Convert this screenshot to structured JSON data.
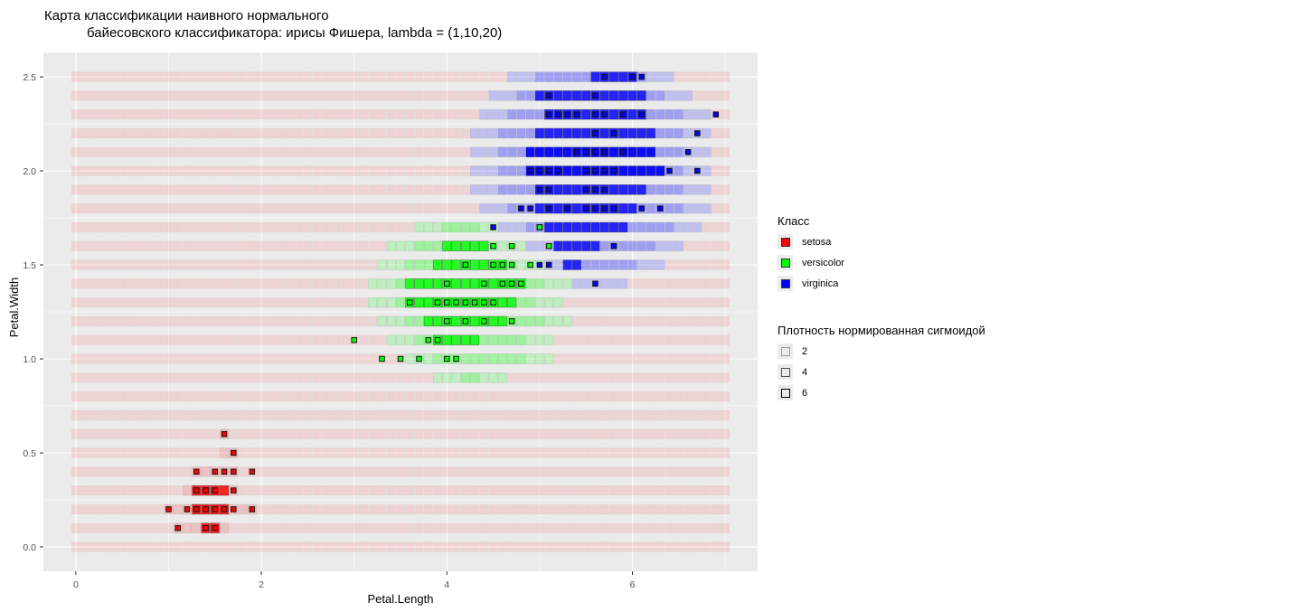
{
  "chart_data": {
    "type": "heatmap",
    "title_line1": "Карта классификации наивного нормального",
    "title_line2": "байесовского классификатора: ирисы Фишера, lambda = (1,10,20)",
    "xlabel": "Petal.Length",
    "ylabel": "Petal.Width",
    "xlim": [
      -0.35,
      7.35
    ],
    "ylim": [
      -0.13,
      2.63
    ],
    "x_ticks": [
      "0",
      "2",
      "4",
      "6"
    ],
    "y_ticks": [
      "0.0",
      "0.5",
      "1.0",
      "1.5",
      "2.0",
      "2.5"
    ],
    "grid": {
      "x_min": 0,
      "x_max": 7,
      "x_step": 0.1,
      "y_min": 0,
      "y_max": 2.5,
      "y_step": 0.1
    },
    "class_colors": {
      "setosa": "#ff0000",
      "versicolor": "#00ff00",
      "virginica": "#0000ff"
    },
    "regions": [
      {
        "class": "virginica",
        "y": 2.5,
        "x_from": 4.7,
        "x_to": 6.4,
        "core_from": 5.6,
        "core_to": 6.0
      },
      {
        "class": "virginica",
        "y": 2.4,
        "x_from": 4.5,
        "x_to": 6.6,
        "core_from": 5.0,
        "core_to": 6.1
      },
      {
        "class": "virginica",
        "y": 2.3,
        "x_from": 4.4,
        "x_to": 6.8,
        "core_from": 5.1,
        "core_to": 6.1
      },
      {
        "class": "virginica",
        "y": 2.2,
        "x_from": 4.3,
        "x_to": 6.8,
        "core_from": 5.0,
        "core_to": 6.2
      },
      {
        "class": "virginica",
        "y": 2.1,
        "x_from": 4.3,
        "x_to": 6.8,
        "core_from": 4.9,
        "core_to": 6.2
      },
      {
        "class": "virginica",
        "y": 2.0,
        "x_from": 4.3,
        "x_to": 6.8,
        "core_from": 4.9,
        "core_to": 6.3
      },
      {
        "class": "virginica",
        "y": 1.9,
        "x_from": 4.3,
        "x_to": 6.8,
        "core_from": 5.0,
        "core_to": 6.1
      },
      {
        "class": "virginica",
        "y": 1.8,
        "x_from": 4.4,
        "x_to": 6.8,
        "core_from": 5.0,
        "core_to": 6.0
      },
      {
        "class": "virginica",
        "y": 1.7,
        "x_from": 4.6,
        "x_to": 6.7,
        "core_from": 5.1,
        "core_to": 5.9
      },
      {
        "class": "virginica",
        "y": 1.6,
        "x_from": 4.9,
        "x_to": 6.5,
        "core_from": 5.2,
        "core_to": 5.6
      },
      {
        "class": "virginica",
        "y": 1.5,
        "x_from": 5.1,
        "x_to": 6.3,
        "core_from": 5.3,
        "core_to": 5.4
      },
      {
        "class": "virginica",
        "y": 1.4,
        "x_from": 5.4,
        "x_to": 5.9,
        "core_from": 9,
        "core_to": 9
      },
      {
        "class": "versicolor",
        "y": 1.7,
        "x_from": 3.7,
        "x_to": 4.6,
        "core_from": 9,
        "core_to": 9
      },
      {
        "class": "versicolor",
        "y": 1.6,
        "x_from": 3.4,
        "x_to": 4.8,
        "core_from": 4.0,
        "core_to": 4.4
      },
      {
        "class": "versicolor",
        "y": 1.5,
        "x_from": 3.3,
        "x_to": 5.0,
        "core_from": 3.9,
        "core_to": 4.6
      },
      {
        "class": "versicolor",
        "y": 1.4,
        "x_from": 3.2,
        "x_to": 5.3,
        "core_from": 3.6,
        "core_to": 4.8
      },
      {
        "class": "versicolor",
        "y": 1.3,
        "x_from": 3.2,
        "x_to": 5.2,
        "core_from": 3.6,
        "core_to": 4.7
      },
      {
        "class": "versicolor",
        "y": 1.2,
        "x_from": 3.3,
        "x_to": 5.3,
        "core_from": 3.8,
        "core_to": 4.6
      },
      {
        "class": "versicolor",
        "y": 1.1,
        "x_from": 3.4,
        "x_to": 5.1,
        "core_from": 3.9,
        "core_to": 4.3
      },
      {
        "class": "versicolor",
        "y": 1.0,
        "x_from": 3.6,
        "x_to": 5.1,
        "core_from": 9,
        "core_to": 9
      },
      {
        "class": "versicolor",
        "y": 0.9,
        "x_from": 3.9,
        "x_to": 4.6,
        "core_from": 9,
        "core_to": 9
      },
      {
        "class": "setosa",
        "y": 0.6,
        "x_from": 1.6,
        "x_to": 1.6,
        "core_from": 9,
        "core_to": 9
      },
      {
        "class": "setosa",
        "y": 0.5,
        "x_from": 1.6,
        "x_to": 1.7,
        "core_from": 9,
        "core_to": 9
      },
      {
        "class": "setosa",
        "y": 0.4,
        "x_from": 1.3,
        "x_to": 1.7,
        "core_from": 9,
        "core_to": 9
      },
      {
        "class": "setosa",
        "y": 0.3,
        "x_from": 1.2,
        "x_to": 1.7,
        "core_from": 1.3,
        "core_to": 1.6
      },
      {
        "class": "setosa",
        "y": 0.2,
        "x_from": 1.0,
        "x_to": 1.9,
        "core_from": 1.3,
        "core_to": 1.6
      },
      {
        "class": "setosa",
        "y": 0.1,
        "x_from": 1.1,
        "x_to": 1.6,
        "core_from": 1.4,
        "core_to": 1.5
      }
    ],
    "points": [
      {
        "class": "virginica",
        "y": 2.5,
        "x": [
          5.7,
          6.0,
          6.1
        ]
      },
      {
        "class": "virginica",
        "y": 2.4,
        "x": [
          5.1,
          5.6
        ]
      },
      {
        "class": "virginica",
        "y": 2.3,
        "x": [
          5.1,
          5.2,
          5.3,
          5.4,
          5.6,
          5.7,
          5.9,
          6.1,
          6.9
        ]
      },
      {
        "class": "virginica",
        "y": 2.2,
        "x": [
          5.6,
          5.8,
          6.7
        ]
      },
      {
        "class": "virginica",
        "y": 2.1,
        "x": [
          5.4,
          5.5,
          5.6,
          5.7,
          5.9,
          6.6
        ]
      },
      {
        "class": "virginica",
        "y": 2.0,
        "x": [
          4.9,
          5.0,
          5.1,
          5.2,
          5.5,
          5.6,
          5.7,
          5.8,
          6.4,
          6.7
        ]
      },
      {
        "class": "virginica",
        "y": 1.9,
        "x": [
          5.0,
          5.1,
          5.5,
          5.6,
          5.7
        ]
      },
      {
        "class": "virginica",
        "y": 1.8,
        "x": [
          4.8,
          4.9,
          5.1,
          5.3,
          5.5,
          5.6,
          5.7,
          5.8,
          6.1,
          6.3
        ]
      },
      {
        "class": "virginica",
        "y": 1.7,
        "x": [
          4.5,
          5.0
        ]
      },
      {
        "class": "virginica",
        "y": 1.6,
        "x": [
          5.1,
          5.8
        ]
      },
      {
        "class": "virginica",
        "y": 1.5,
        "x": [
          5.0,
          5.1
        ]
      },
      {
        "class": "virginica",
        "y": 1.4,
        "x": [
          5.6
        ]
      },
      {
        "class": "versicolor",
        "y": 1.7,
        "x": [
          5.0
        ]
      },
      {
        "class": "versicolor",
        "y": 1.6,
        "x": [
          4.5,
          4.7,
          5.1
        ]
      },
      {
        "class": "versicolor",
        "y": 1.5,
        "x": [
          4.2,
          4.5,
          4.6,
          4.7,
          4.9
        ]
      },
      {
        "class": "versicolor",
        "y": 1.4,
        "x": [
          4.0,
          4.4,
          4.6,
          4.7,
          4.8
        ]
      },
      {
        "class": "versicolor",
        "y": 1.3,
        "x": [
          3.6,
          3.9,
          4.0,
          4.1,
          4.2,
          4.3,
          4.4,
          4.5
        ]
      },
      {
        "class": "versicolor",
        "y": 1.2,
        "x": [
          4.0,
          4.2,
          4.4,
          4.7
        ]
      },
      {
        "class": "versicolor",
        "y": 1.1,
        "x": [
          3.0,
          3.8,
          3.9
        ]
      },
      {
        "class": "versicolor",
        "y": 1.0,
        "x": [
          3.3,
          3.5,
          3.7,
          4.0,
          4.1
        ]
      },
      {
        "class": "setosa",
        "y": 0.6,
        "x": [
          1.6
        ]
      },
      {
        "class": "setosa",
        "y": 0.5,
        "x": [
          1.7
        ]
      },
      {
        "class": "setosa",
        "y": 0.4,
        "x": [
          1.3,
          1.5,
          1.6,
          1.7,
          1.9
        ]
      },
      {
        "class": "setosa",
        "y": 0.3,
        "x": [
          1.3,
          1.4,
          1.5,
          1.7
        ]
      },
      {
        "class": "setosa",
        "y": 0.2,
        "x": [
          1.0,
          1.2,
          1.3,
          1.4,
          1.5,
          1.6,
          1.7,
          1.9
        ]
      },
      {
        "class": "setosa",
        "y": 0.1,
        "x": [
          1.1,
          1.4,
          1.5
        ]
      }
    ]
  },
  "legend": {
    "class_title": "Класс",
    "classes": [
      {
        "label": "setosa",
        "color": "#ff0000"
      },
      {
        "label": "versicolor",
        "color": "#00ff00"
      },
      {
        "label": "virginica",
        "color": "#0000ff"
      }
    ],
    "density_title": "Плотность нормированная сигмоидой",
    "density": [
      {
        "label": "2"
      },
      {
        "label": "4"
      },
      {
        "label": "6"
      }
    ]
  }
}
